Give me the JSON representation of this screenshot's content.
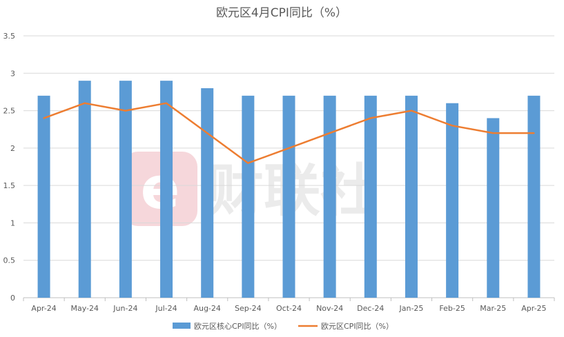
{
  "chart_data": {
    "type": "bar",
    "title": "欧元区4月CPI同比（%）",
    "categories": [
      "Apr-24",
      "May-24",
      "Jun-24",
      "Jul-24",
      "Aug-24",
      "Sep-24",
      "Oct-24",
      "Nov-24",
      "Dec-24",
      "Jan-25",
      "Feb-25",
      "Mar-25",
      "Apr-25"
    ],
    "series": [
      {
        "name": "欧元区核心CPI同比（%）",
        "type": "bar",
        "color": "#5b9bd5",
        "values": [
          2.7,
          2.9,
          2.9,
          2.9,
          2.8,
          2.7,
          2.7,
          2.7,
          2.7,
          2.7,
          2.6,
          2.4,
          2.7
        ]
      },
      {
        "name": "欧元区CPI同比（%）",
        "type": "line",
        "color": "#ed7d31",
        "values": [
          2.4,
          2.6,
          2.5,
          2.6,
          2.2,
          1.8,
          2.0,
          2.2,
          2.4,
          2.5,
          2.3,
          2.2,
          2.2
        ]
      }
    ],
    "ylim": [
      0,
      3.5
    ],
    "yticks": [
      0,
      0.5,
      1,
      1.5,
      2,
      2.5,
      3,
      3.5
    ],
    "ytick_labels": [
      "0",
      "0.5",
      "1",
      "1.5",
      "2",
      "2.5",
      "3",
      "3.5"
    ],
    "xlabel": "",
    "ylabel": "",
    "grid": true,
    "legend_position": "bottom"
  },
  "watermark": {
    "text": "财联社",
    "logo_letter": "e"
  },
  "colors": {
    "grid": "#d9d9d9",
    "axis": "#bfbfbf",
    "text": "#595959",
    "watermark_logo": "#f6d7db"
  }
}
